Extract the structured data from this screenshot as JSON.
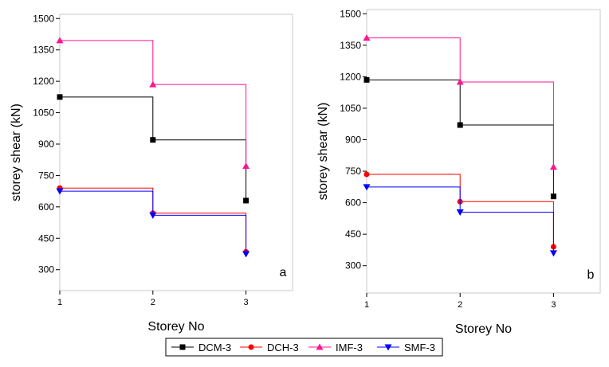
{
  "chart_data": [
    {
      "type": "step-line",
      "annotation": "a",
      "x_label": "Storey No",
      "y_label": "storey shear (kN)",
      "x": [
        1,
        2,
        3
      ],
      "xlim": [
        1,
        3.5
      ],
      "xticks": [
        1,
        2,
        3
      ],
      "ylim": [
        200,
        1520
      ],
      "yticks": [
        300,
        450,
        600,
        750,
        900,
        1050,
        1200,
        1350,
        1500
      ],
      "series": [
        {
          "name": "DCM-3",
          "color": "#000000",
          "marker": "square",
          "values": [
            1125,
            920,
            630
          ]
        },
        {
          "name": "DCH-3",
          "color": "#ff0000",
          "marker": "circle",
          "values": [
            690,
            570,
            385
          ]
        },
        {
          "name": "IMF-3",
          "color": "#ff1493",
          "marker": "triangle-up",
          "values": [
            1395,
            1185,
            795
          ]
        },
        {
          "name": "SMF-3",
          "color": "#0000ff",
          "marker": "triangle-down",
          "values": [
            675,
            560,
            375
          ]
        }
      ]
    },
    {
      "type": "step-line",
      "annotation": "b",
      "x_label": "Storey No",
      "y_label": "storey shear (kN)",
      "x": [
        1,
        2,
        3
      ],
      "xlim": [
        1,
        3.5
      ],
      "xticks": [
        1,
        2,
        3
      ],
      "ylim": [
        170,
        1520
      ],
      "yticks": [
        300,
        450,
        600,
        750,
        900,
        1050,
        1200,
        1350,
        1500
      ],
      "series": [
        {
          "color": "#000000",
          "marker": "square",
          "values": [
            1185,
            970,
            630
          ]
        },
        {
          "color": "#ff0000",
          "marker": "circle",
          "values": [
            735,
            605,
            390
          ]
        },
        {
          "color": "#ff1493",
          "marker": "triangle-up",
          "values": [
            1385,
            1175,
            770
          ]
        },
        {
          "color": "#0000ff",
          "marker": "triangle-down",
          "values": [
            675,
            555,
            360
          ]
        }
      ]
    }
  ]
}
